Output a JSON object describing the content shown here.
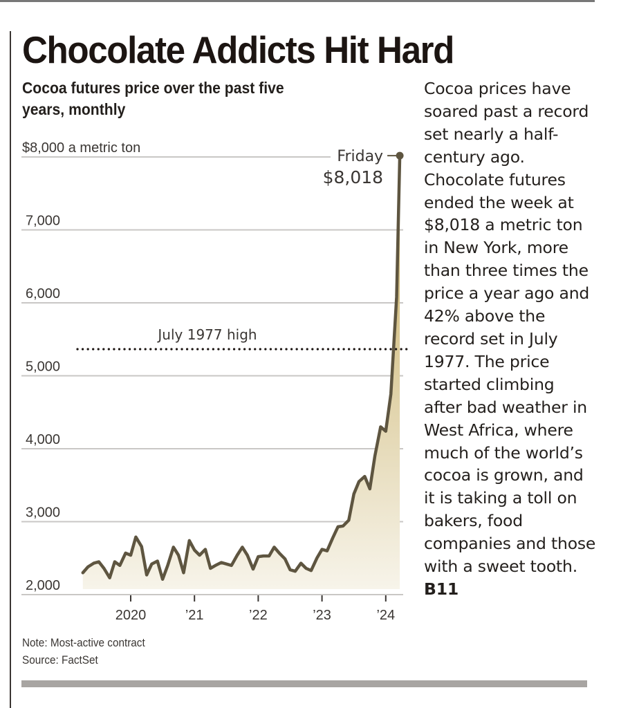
{
  "headline": "Chocolate Addicts Hit Hard",
  "subtitle": "Cocoa futures price over the past five years, monthly",
  "body": {
    "text": "Cocoa prices have soared past a record set nearly a half-century ago. Chocolate futures ended the week at $8,018 a metric ton in New York, more than three times the price a year ago and 42% above the record set in July 1977. The price started climbing after bad weather in West Africa, where much of the world’s cocoa is grown, and it is taking a toll on bakers, food companies and those with a sweet tooth.",
    "page_ref": "B11"
  },
  "footnote": {
    "note": "Note: Most-active contract",
    "source": "Source: FactSet"
  },
  "colors": {
    "line": "#5e5540",
    "fill_top": "#c4a857",
    "fill_bottom": "#f7f4ea",
    "grid": "#c9c7c5",
    "text": "#231f1c"
  },
  "chart_data": {
    "type": "area",
    "title": "Chocolate Addicts Hit Hard",
    "subtitle": "Cocoa futures price over the past five years, monthly",
    "ylabel": "$8,000 a metric ton",
    "xlabel": "",
    "ylim": [
      2000,
      8000
    ],
    "yticks": [
      2000,
      3000,
      4000,
      5000,
      6000,
      7000,
      8000
    ],
    "ytick_labels": [
      "2,000",
      "3,000",
      "4,000",
      "5,000",
      "6,000",
      "7,000",
      "$8,000 a metric ton"
    ],
    "xlim": [
      2019.12,
      2024.35
    ],
    "xticks": [
      2020,
      2021,
      2022,
      2023,
      2024
    ],
    "xtick_labels": [
      "2020",
      "’21",
      "’22",
      "’23",
      "’24"
    ],
    "grid": true,
    "legend": "none",
    "series": [
      {
        "name": "Cocoa futures price",
        "unit": "$ per metric ton",
        "x": [
          2019.25,
          2019.33,
          2019.42,
          2019.5,
          2019.58,
          2019.67,
          2019.75,
          2019.83,
          2019.92,
          2020.0,
          2020.08,
          2020.17,
          2020.25,
          2020.33,
          2020.42,
          2020.5,
          2020.58,
          2020.67,
          2020.75,
          2020.83,
          2020.92,
          2021.0,
          2021.08,
          2021.17,
          2021.25,
          2021.33,
          2021.42,
          2021.5,
          2021.58,
          2021.67,
          2021.75,
          2021.83,
          2021.92,
          2022.0,
          2022.08,
          2022.17,
          2022.25,
          2022.33,
          2022.42,
          2022.5,
          2022.58,
          2022.67,
          2022.75,
          2022.83,
          2022.92,
          2023.0,
          2023.08,
          2023.17,
          2023.25,
          2023.33,
          2023.42,
          2023.5,
          2023.58,
          2023.67,
          2023.75,
          2023.83,
          2023.92,
          2024.0,
          2024.08,
          2024.17,
          2024.22
        ],
        "values": [
          2300,
          2380,
          2430,
          2450,
          2360,
          2230,
          2450,
          2400,
          2570,
          2540,
          2790,
          2660,
          2270,
          2420,
          2460,
          2210,
          2400,
          2650,
          2540,
          2300,
          2740,
          2610,
          2540,
          2620,
          2360,
          2400,
          2440,
          2420,
          2400,
          2540,
          2650,
          2540,
          2350,
          2520,
          2530,
          2530,
          2650,
          2570,
          2490,
          2340,
          2320,
          2430,
          2360,
          2330,
          2500,
          2620,
          2600,
          2780,
          2930,
          2940,
          3020,
          3380,
          3550,
          3620,
          3450,
          3900,
          4300,
          4240,
          4750,
          6080,
          8018
        ]
      }
    ],
    "reference_lines": [
      {
        "label": "July 1977 high",
        "value": 5650,
        "style": "dotted"
      }
    ],
    "annotations": [
      {
        "label_line1": "Friday",
        "label_line2": "$8,018",
        "x": 2024.22,
        "value": 8018
      }
    ]
  }
}
